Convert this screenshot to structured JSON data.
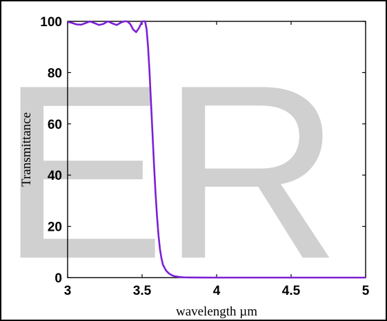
{
  "watermark": "ER",
  "chart_data": {
    "type": "line",
    "xlabel": "wavelength µm",
    "ylabel": "Transmittance",
    "xlim": [
      3,
      5
    ],
    "ylim": [
      0,
      100
    ],
    "xticks": [
      3,
      3.5,
      4,
      4.5,
      5
    ],
    "xtick_labels": [
      "3",
      "3.5",
      "4",
      "4.5",
      "5"
    ],
    "yticks": [
      0,
      20,
      40,
      60,
      80,
      100
    ],
    "ytick_labels": [
      "0",
      "20",
      "40",
      "60",
      "80",
      "100"
    ],
    "grid": false,
    "series": [
      {
        "color": "#7b1fd6",
        "x": [
          3.0,
          3.03,
          3.06,
          3.09,
          3.12,
          3.15,
          3.18,
          3.21,
          3.24,
          3.27,
          3.3,
          3.33,
          3.36,
          3.38,
          3.4,
          3.42,
          3.44,
          3.46,
          3.48,
          3.5,
          3.52,
          3.53,
          3.54,
          3.55,
          3.56,
          3.57,
          3.58,
          3.59,
          3.6,
          3.61,
          3.62,
          3.63,
          3.64,
          3.66,
          3.68,
          3.7,
          3.72,
          3.75,
          3.78,
          3.82,
          3.9,
          4.0,
          4.5,
          5.0
        ],
        "y": [
          99.8,
          99.4,
          98.8,
          98.7,
          99.3,
          100.0,
          99.3,
          98.6,
          99.0,
          100.0,
          99.2,
          98.6,
          99.6,
          100.0,
          100.0,
          99.0,
          96.8,
          95.8,
          97.5,
          100.0,
          100.0,
          97.0,
          90.0,
          80.0,
          68.0,
          56.0,
          44.0,
          33.0,
          24.0,
          16.5,
          11.0,
          7.5,
          5.0,
          2.8,
          1.6,
          0.9,
          0.5,
          0.25,
          0.1,
          0.05,
          0.02,
          0.0,
          0.0,
          0.0
        ]
      }
    ]
  }
}
